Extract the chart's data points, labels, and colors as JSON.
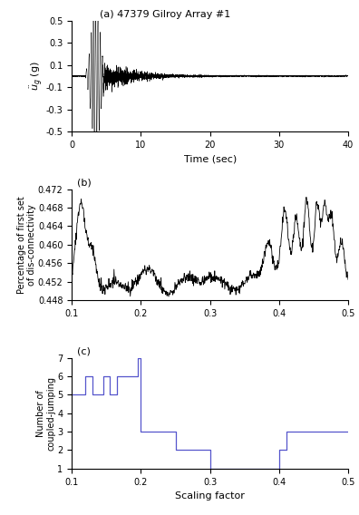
{
  "title_a": "(a) 47379 Gilroy Array #1",
  "ylabel_a": "$\\ddot{u}_g$ (g)",
  "xlabel_a": "Time (sec)",
  "xlim_a": [
    0,
    40
  ],
  "ylim_a": [
    -0.5,
    0.5
  ],
  "yticks_a": [
    -0.5,
    -0.3,
    -0.1,
    0.1,
    0.3,
    0.5
  ],
  "title_b": "(b)",
  "ylabel_b": "Percentage of first set\nof dis-connectivity",
  "ylim_b": [
    0.448,
    0.472
  ],
  "yticks_b": [
    0.448,
    0.452,
    0.456,
    0.46,
    0.464,
    0.468,
    0.472
  ],
  "xlim_b": [
    0.1,
    0.5
  ],
  "title_c": "(c)",
  "ylabel_c": "Number of\ncoupled-jumping",
  "xlabel_c": "Scaling factor",
  "ylim_c": [
    1,
    7
  ],
  "yticks_c": [
    1,
    2,
    3,
    4,
    5,
    6,
    7
  ],
  "xlim_c": [
    0.1,
    0.5
  ],
  "xticks_c": [
    0.1,
    0.2,
    0.3,
    0.4,
    0.5
  ],
  "line_color_b": "#000000",
  "line_color_c": "#5555cc",
  "eqk_color": "#000000",
  "c_x": [
    0.1,
    0.12,
    0.13,
    0.145,
    0.155,
    0.165,
    0.185,
    0.195,
    0.2,
    0.25,
    0.265,
    0.295,
    0.3,
    0.395,
    0.4,
    0.41,
    0.5
  ],
  "c_y": [
    5,
    6,
    5,
    6,
    5,
    6,
    6,
    7,
    3,
    2,
    2,
    2,
    1,
    1,
    2,
    3,
    3
  ]
}
